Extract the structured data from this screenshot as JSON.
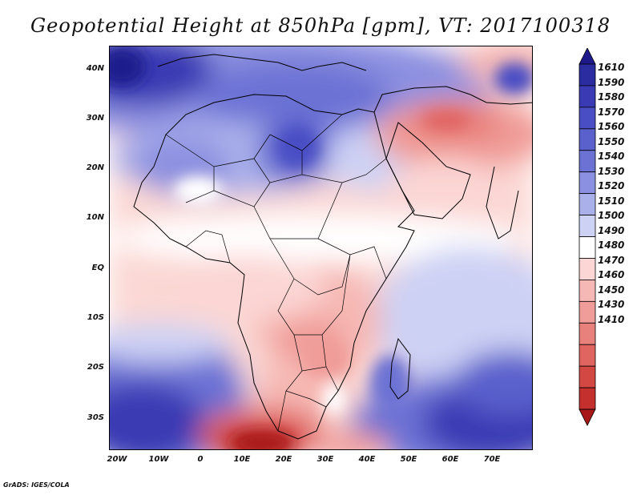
{
  "title": "Geopotential Height at 850hPa [gpm], VT: 2017100318",
  "credit": "GrADS: IGES/COLA",
  "map": {
    "variable": "Geopotential Height at 850hPa",
    "units": "gpm",
    "valid_time": "2017100318",
    "lat_labels": [
      "40N",
      "30N",
      "20N",
      "10N",
      "EQ",
      "10S",
      "20S",
      "30S"
    ],
    "lon_labels": [
      "20W",
      "10W",
      "0",
      "10E",
      "20E",
      "30E",
      "40E",
      "50E",
      "60E",
      "70E"
    ]
  },
  "legend": {
    "levels": [
      "1610",
      "1590",
      "1580",
      "1570",
      "1560",
      "1550",
      "1540",
      "1530",
      "1520",
      "1510",
      "1500",
      "1490",
      "1480",
      "1470",
      "1460",
      "1450",
      "1430",
      "1410"
    ],
    "colors": [
      "#1e1a8c",
      "#2a2ca0",
      "#3a3ab4",
      "#4a4ec4",
      "#5a60cc",
      "#6c72d4",
      "#8c90e0",
      "#aab0ea",
      "#cdd1f4",
      "#ffffff",
      "#fbd6d4",
      "#f6b8b4",
      "#f09c98",
      "#e8807c",
      "#e06460",
      "#d44844",
      "#c4302e",
      "#a81818"
    ]
  }
}
